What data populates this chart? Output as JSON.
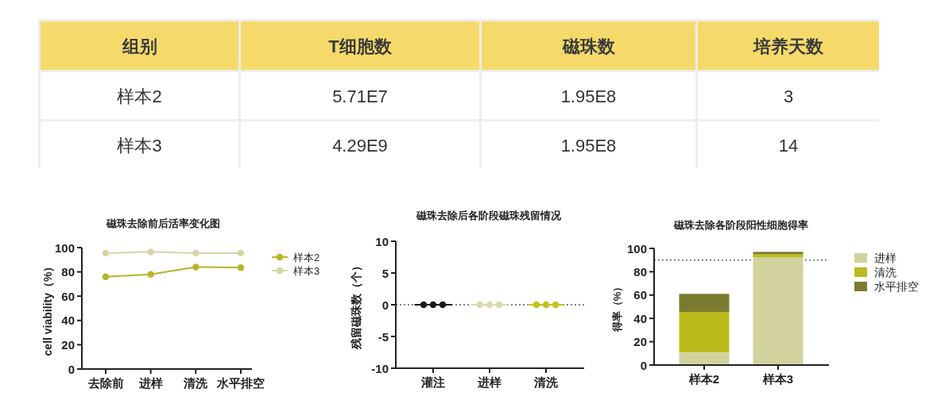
{
  "chart_data": [
    {
      "type": "other",
      "color": "#f5da6b",
      "categories": [
        "组别",
        "T细胞数",
        "磁珠数",
        "培养天数"
      ],
      "cell_labels": [
        [
          "样本2",
          "5.71E7",
          "1.95E8",
          "3"
        ],
        [
          "样本3",
          "4.29E9",
          "1.95E8",
          "14"
        ]
      ]
    },
    {
      "type": "line",
      "title": "磁珠去除前后活率变化图",
      "ylabel": "cell viability（%）",
      "categories": [
        "去除前",
        "进样",
        "清洗",
        "水平排空"
      ],
      "series": [
        {
          "name": "样本2",
          "color": "#b5b624",
          "values": [
            76,
            78,
            84,
            83.5
          ]
        },
        {
          "name": "样本3",
          "color": "#d4d5a4",
          "values": [
            95.5,
            96.5,
            95.5,
            95.5
          ]
        }
      ],
      "ylim": [
        0,
        100
      ],
      "yticks": [
        0,
        20,
        40,
        60,
        80,
        100
      ],
      "marker": "circle",
      "legend": "top right"
    },
    {
      "type": "scatter",
      "title": "磁珠去除后各阶段磁珠残留情况",
      "ylabel": "残留磁珠数（个）",
      "categories": [
        "灌注",
        "进样",
        "清洗"
      ],
      "series": [
        {
          "color": "#1a1a1a",
          "x": [
            "灌注",
            "灌注",
            "灌注"
          ],
          "values": [
            0,
            0,
            0
          ]
        },
        {
          "color": "#d9d9ad",
          "x": [
            "进样",
            "进样",
            "进样"
          ],
          "values": [
            0,
            0,
            0
          ]
        },
        {
          "color": "#c3c21f",
          "x": [
            "清洗",
            "清洗",
            "清洗"
          ],
          "values": [
            0,
            0,
            0
          ]
        },
        {
          "type": "box",
          "colors": [
            "#1a1a1a",
            "#d9d9ad",
            "#c3c21f"
          ],
          "boxes": [
            {
              "low": 0,
              "q1": 0,
              "median": 0,
              "q3": 0,
              "high": 0
            },
            {
              "low": 0,
              "q1": 0,
              "median": 0,
              "q3": 0,
              "high": 0
            },
            {
              "low": 0,
              "q1": 0,
              "median": 0,
              "q3": 0,
              "high": 0
            }
          ]
        }
      ],
      "ylim": [
        -10,
        10
      ],
      "yticks": [
        -10,
        -5,
        0,
        5,
        10
      ],
      "marker": "circle",
      "ref_lines": [
        {
          "axis": "y",
          "value": 0,
          "color": "#555555",
          "line_style": "dotted"
        }
      ]
    },
    {
      "type": "bar",
      "stacked": true,
      "title": "磁珠去除各阶段阳性细胞得率",
      "ylabel": "得率（%）",
      "categories": [
        "样本2",
        "样本3"
      ],
      "series": [
        {
          "name": "进样",
          "color": "#d2d29f",
          "values": [
            11,
            92.5
          ]
        },
        {
          "name": "清洗",
          "color": "#bbbb1b",
          "values": [
            34.5,
            2.5
          ]
        },
        {
          "name": "水平排空",
          "color": "#7b7b2f",
          "values": [
            15.5,
            2
          ]
        }
      ],
      "ylim": [
        0,
        100
      ],
      "yticks": [
        0,
        20,
        40,
        60,
        80,
        100
      ],
      "legend": "top right",
      "ref_lines": [
        {
          "axis": "y",
          "value": 90,
          "color": "#666666",
          "line_style": "dotted"
        }
      ]
    }
  ]
}
